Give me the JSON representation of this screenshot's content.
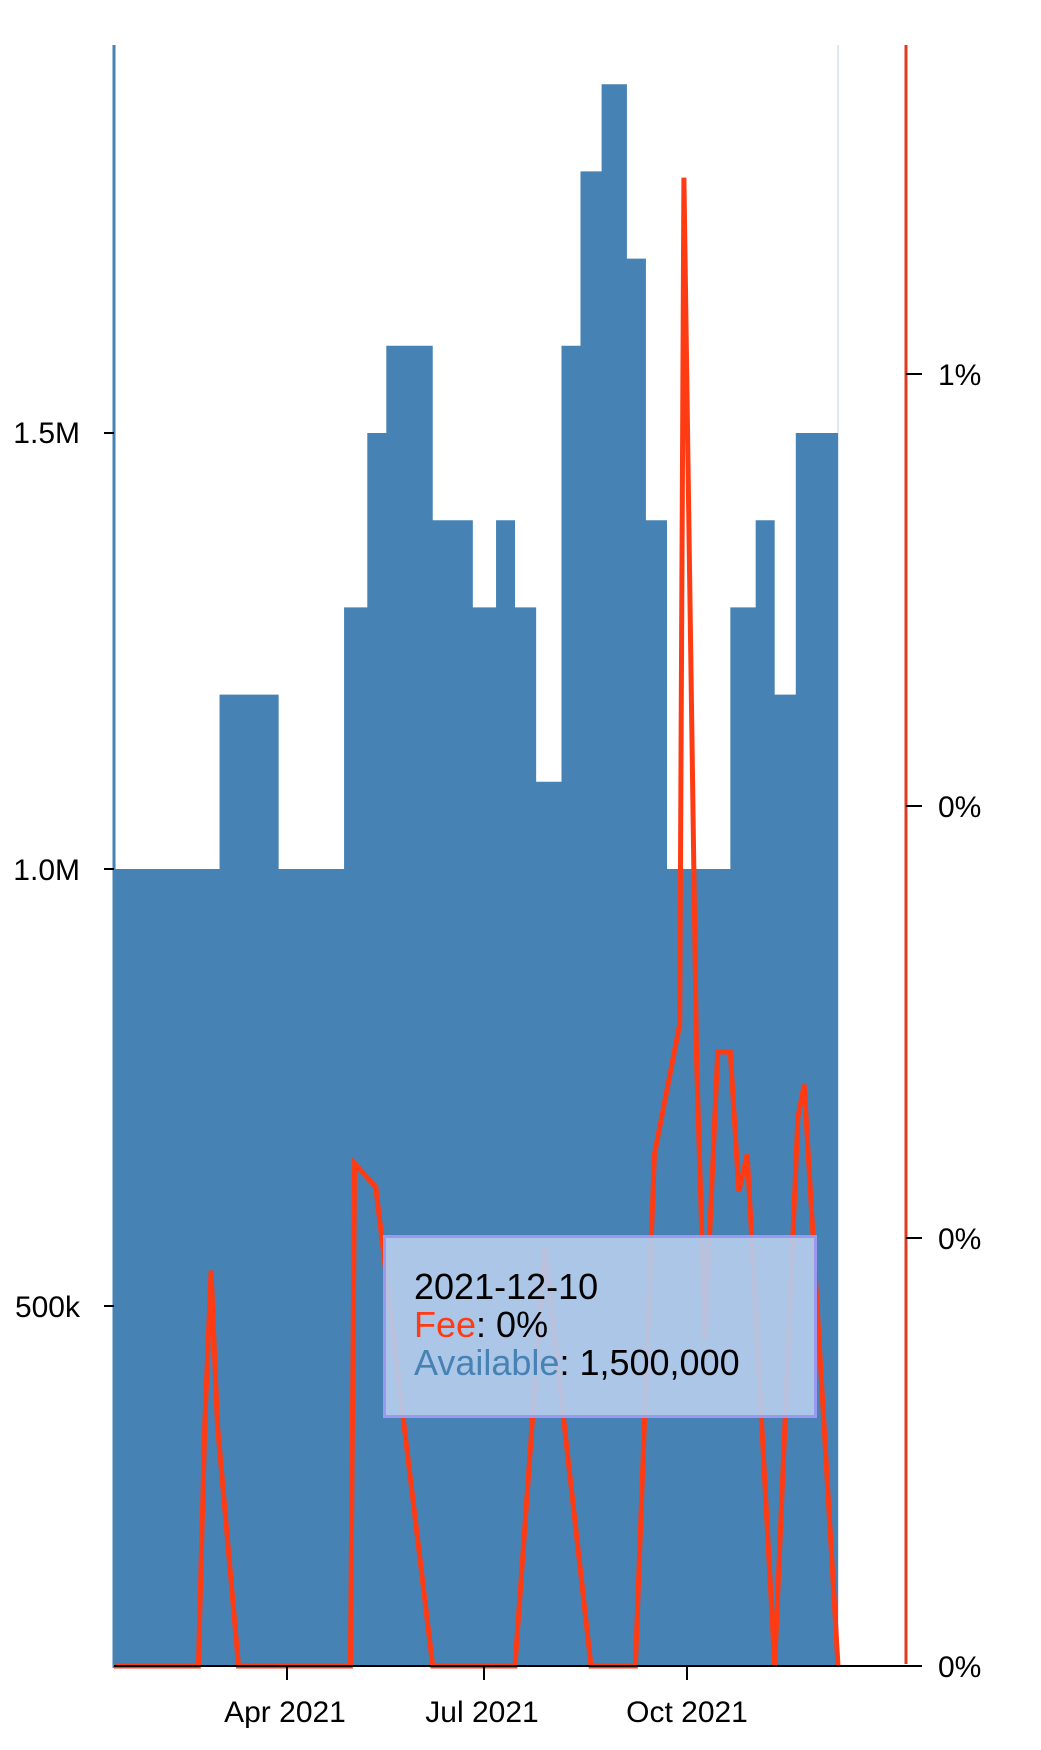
{
  "chart_data": {
    "type": "bar",
    "x_axis": {
      "ticks": [
        "Apr 2021",
        "Jul 2021",
        "Oct 2021"
      ],
      "tick_dates": [
        "2021-04-01",
        "2021-07-01",
        "2021-10-01"
      ]
    },
    "y_axis_left": {
      "ticks": [
        500000,
        1000000,
        1500000
      ],
      "tick_labels": [
        "500k",
        "1.0M",
        "1.5M"
      ]
    },
    "y_axis_right": {
      "ticks": [
        "0%",
        "0%",
        "0%",
        "1%"
      ]
    },
    "series": [
      {
        "name": "Available",
        "color": "#4682b4",
        "points": [
          [
            "2021-01-01",
            1000000
          ],
          [
            "2021-01-10",
            1000000
          ],
          [
            "2021-01-22",
            1000000
          ],
          [
            "2021-02-01",
            1000000
          ],
          [
            "2021-02-10",
            1000000
          ],
          [
            "2021-02-20",
            1200000
          ],
          [
            "2021-03-01",
            1200000
          ],
          [
            "2021-03-10",
            1200000
          ],
          [
            "2021-03-20",
            1000000
          ],
          [
            "2021-04-01",
            1000000
          ],
          [
            "2021-04-10",
            1000000
          ],
          [
            "2021-04-20",
            1300000
          ],
          [
            "2021-05-01",
            1500000
          ],
          [
            "2021-05-10",
            1600000
          ],
          [
            "2021-05-20",
            1600000
          ],
          [
            "2021-06-01",
            1400000
          ],
          [
            "2021-06-10",
            1400000
          ],
          [
            "2021-06-20",
            1300000
          ],
          [
            "2021-07-01",
            1400000
          ],
          [
            "2021-07-10",
            1300000
          ],
          [
            "2021-07-20",
            1100000
          ],
          [
            "2021-08-01",
            1600000
          ],
          [
            "2021-08-10",
            1800000
          ],
          [
            "2021-08-20",
            1900000
          ],
          [
            "2021-09-01",
            1700000
          ],
          [
            "2021-09-10",
            1400000
          ],
          [
            "2021-09-20",
            1000000
          ],
          [
            "2021-10-01",
            1000000
          ],
          [
            "2021-10-10",
            1000000
          ],
          [
            "2021-10-20",
            1300000
          ],
          [
            "2021-11-01",
            1400000
          ],
          [
            "2021-11-10",
            1200000
          ],
          [
            "2021-11-20",
            1500000
          ],
          [
            "2021-12-01",
            1500000
          ],
          [
            "2021-12-10",
            1500000
          ]
        ]
      },
      {
        "name": "Fee",
        "color": "#ff3b14",
        "points": [
          [
            "2021-01-01",
            0.0
          ],
          [
            "2021-02-10",
            0.0
          ],
          [
            "2021-02-13",
            0.52
          ],
          [
            "2021-02-16",
            0.85
          ],
          [
            "2021-02-19",
            0.52
          ],
          [
            "2021-03-01",
            0.0
          ],
          [
            "2021-03-29",
            0.0
          ],
          [
            "2021-04-23",
            0.0
          ],
          [
            "2021-04-25",
            1.08
          ],
          [
            "2021-05-05",
            1.03
          ],
          [
            "2021-06-01",
            0.0
          ],
          [
            "2021-07-10",
            0.0
          ],
          [
            "2021-07-24",
            0.9
          ],
          [
            "2021-08-15",
            0.0
          ],
          [
            "2021-09-05",
            0.0
          ],
          [
            "2021-09-14",
            1.1
          ],
          [
            "2021-09-26",
            1.38
          ],
          [
            "2021-09-28",
            3.2
          ],
          [
            "2021-10-04",
            1.3
          ],
          [
            "2021-10-08",
            0.7
          ],
          [
            "2021-10-14",
            1.32
          ],
          [
            "2021-10-20",
            1.32
          ],
          [
            "2021-10-24",
            1.02
          ],
          [
            "2021-10-28",
            1.1
          ],
          [
            "2021-11-10",
            0.0
          ],
          [
            "2021-11-21",
            1.18
          ],
          [
            "2021-11-24",
            1.25
          ],
          [
            "2021-12-10",
            0.0
          ]
        ]
      }
    ],
    "tooltip": {
      "date": "2021-12-10",
      "fee_label": "Fee",
      "fee_value": ": 0%",
      "available_label": "Available",
      "available_value": ": 1,500,000"
    },
    "grid": false,
    "legend": "none"
  },
  "colors": {
    "available": "#4682b4",
    "fee": "#ff3b14",
    "tooltip_bg": "#b4cbec",
    "tooltip_border": "#9a98ef"
  }
}
